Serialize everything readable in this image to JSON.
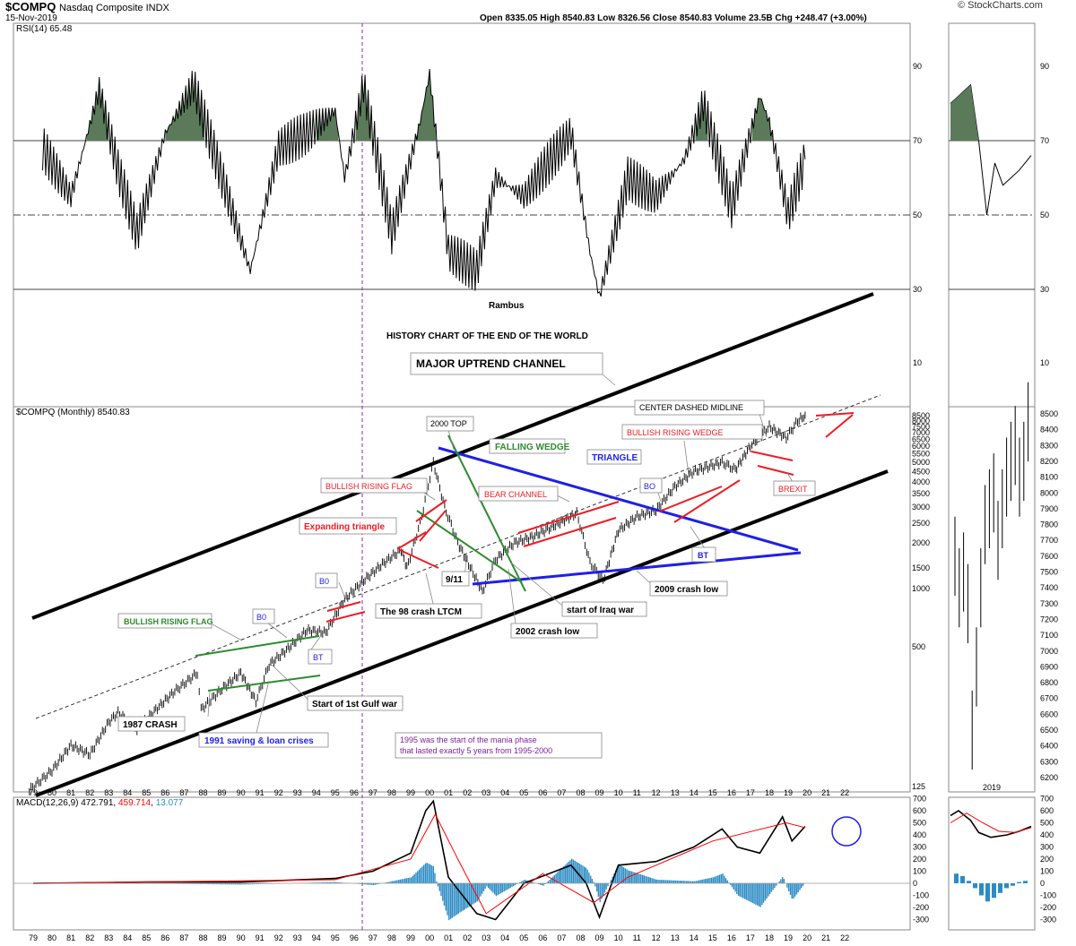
{
  "header": {
    "symbol": "$COMPQ",
    "name": "Nasdaq Composite INDX",
    "date": "15-Nov-2019",
    "brand": "© StockCharts.com",
    "ohlc": "Open 8335.05  High 8540.83  Low 8326.56  Close 8540.83  Volume 23.5B  Chg +248.47 (+3.00%)"
  },
  "rsi": {
    "label": "RSI(14) 65.48",
    "levels": [
      90,
      70,
      50,
      30,
      10
    ]
  },
  "price_panel": {
    "label": "$COMPQ (Monthly) 8540.83",
    "log_ticks": [
      125,
      500,
      1000,
      1500,
      2000,
      2500,
      3000,
      3500,
      4000,
      4500,
      5000,
      5500,
      6000,
      6500,
      7000,
      7500,
      8000,
      8500
    ],
    "inset_ticks": [
      6200,
      6300,
      6400,
      6500,
      6600,
      6700,
      6800,
      6900,
      7000,
      7100,
      7200,
      7300,
      7400,
      7500,
      7600,
      7700,
      7800,
      7900,
      8000,
      8100,
      8200,
      8300,
      8400,
      8500
    ]
  },
  "macd": {
    "label": "MACD(12,26,9)",
    "v1": "472.791",
    "v2": "459.714",
    "v3": "13.077",
    "ticks": [
      700,
      600,
      500,
      400,
      300,
      200,
      100,
      0,
      -100,
      -200,
      -300
    ]
  },
  "x_axis": {
    "years": [
      "79",
      "80",
      "81",
      "82",
      "83",
      "84",
      "85",
      "86",
      "87",
      "88",
      "89",
      "90",
      "91",
      "92",
      "93",
      "94",
      "95",
      "96",
      "97",
      "98",
      "99",
      "00",
      "01",
      "02",
      "03",
      "04",
      "05",
      "06",
      "07",
      "08",
      "09",
      "10",
      "11",
      "12",
      "13",
      "14",
      "15",
      "16",
      "17",
      "18",
      "19",
      "20",
      "21",
      "22"
    ],
    "inset_label": "2019"
  },
  "annotations": {
    "rambus": "Rambus",
    "title": "HISTORY CHART OF THE END OF THE WORLD",
    "major_channel": "MAJOR UPTREND CHANNEL",
    "center_midline": "CENTER DASHED MIDLINE",
    "top_2000": "2000 TOP",
    "falling_wedge": "FALLING WEDGE",
    "triangle": "TRIANGLE",
    "bullish_rising_flag_1": "BULLISH RISING FLAG",
    "bullish_rising_flag_2": "BULLISH RISING FLAG",
    "bear_channel": "BEAR CHANNEL",
    "bullish_rising_wedge": "BULLISH RISING WEDGE",
    "expanding_triangle": "Expanding triangle",
    "brexit": "BREXIT",
    "bo1": "B0",
    "bo2": "B0",
    "bo3": "BO",
    "bt1": "BT",
    "bt2": "BT",
    "crash_1987": "1987 CRASH",
    "gulf_war": "Start of 1st Gulf war",
    "sl_crisis": "1991 saving & loan crises",
    "ltcm": "The 98 crash LTCM",
    "nine_eleven": "9/11",
    "iraq": "start of Iraq war",
    "crash_2002": "2002 crash low",
    "crash_2009": "2009 crash low",
    "mania_1": "1995 was the start of the mania phase",
    "mania_2": "that lasted exactly 5 years from 1995-2000"
  },
  "colors": {
    "rsi_fill_high": "#5a7a5a",
    "rsi_fill_low": "#b0707a",
    "red": "#ee1c24",
    "blue": "#1f1fe6",
    "green": "#2e8b2e",
    "purple": "#7f1f9f",
    "macd_signal": "#ff0000",
    "macd_hist": "#2b8cc4"
  },
  "chart_data": [
    {
      "type": "line",
      "title": "RSI(14)",
      "ylim": [
        0,
        100
      ],
      "reference_lines": [
        70,
        50,
        30
      ],
      "x": [
        1979.5,
        1981,
        1982.5,
        1983.5,
        1984.5,
        1986,
        1987.5,
        1989,
        1990.5,
        1992,
        1993.5,
        1995,
        1995.5,
        1996.5,
        1998,
        1999.5,
        2000,
        2001,
        2002.5,
        2003.5,
        2005,
        2006,
        2007.5,
        2008.5,
        2009,
        2010.5,
        2012,
        2013.5,
        2014.5,
        2016,
        2017.5,
        2018,
        2019,
        2019.9
      ],
      "values": [
        68,
        55,
        84,
        62,
        45,
        72,
        85,
        60,
        35,
        68,
        72,
        78,
        60,
        85,
        45,
        75,
        88,
        40,
        35,
        60,
        55,
        62,
        72,
        40,
        28,
        60,
        55,
        65,
        80,
        52,
        82,
        75,
        50,
        65
      ]
    },
    {
      "type": "line",
      "title": "$COMPQ (Monthly)",
      "yscale": "log",
      "ylim": [
        80,
        9500
      ],
      "x": [
        1978.8,
        1980,
        1981,
        1982,
        1983,
        1983.5,
        1984.5,
        1985.5,
        1986.5,
        1987.7,
        1987.9,
        1989,
        1990,
        1990.8,
        1991.5,
        1992.5,
        1993.5,
        1994.5,
        1995.5,
        1996.5,
        1997.5,
        1998.5,
        1998.8,
        1999.5,
        2000.2,
        2000.8,
        2001.5,
        2002.8,
        2003.5,
        2004.5,
        2005.5,
        2006.5,
        2007.8,
        2008.5,
        2009.2,
        2010,
        2011,
        2012,
        2013,
        2014,
        2015.5,
        2016.2,
        2017,
        2018,
        2018.9,
        2019.5,
        2019.9
      ],
      "values": [
        120,
        150,
        200,
        180,
        260,
        290,
        240,
        300,
        370,
        455,
        300,
        380,
        455,
        330,
        500,
        600,
        740,
        720,
        1050,
        1300,
        1570,
        1850,
        1500,
        2500,
        5000,
        3000,
        2000,
        1150,
        1650,
        2000,
        2150,
        2400,
        2800,
        1600,
        1300,
        2300,
        2700,
        2900,
        3800,
        4500,
        5000,
        4600,
        6000,
        7500,
        6600,
        8000,
        8540
      ]
    },
    {
      "type": "line",
      "title": "MACD(12,26,9)",
      "series": [
        {
          "name": "MACD(12,26,9)",
          "x": [
            1979,
            1985,
            1990,
            1995,
            1997,
            1999,
            1999.8,
            2000.2,
            2001,
            2002.5,
            2003.5,
            2005,
            2007.5,
            2008.3,
            2009,
            2010,
            2012,
            2014,
            2015.5,
            2016.3,
            2017.5,
            2018.7,
            2019.2,
            2019.9
          ],
          "values": [
            0,
            10,
            10,
            40,
            100,
            250,
            600,
            680,
            50,
            -250,
            -300,
            0,
            150,
            0,
            -280,
            150,
            180,
            300,
            450,
            300,
            250,
            550,
            350,
            470
          ]
        },
        {
          "name": "Signal",
          "x": [
            1979,
            1995,
            1999,
            2000.3,
            2001.5,
            2003,
            2006,
            2008.7,
            2010.5,
            2015,
            2018.9,
            2019.9
          ],
          "values": [
            0,
            30,
            200,
            570,
            200,
            -250,
            80,
            -160,
            50,
            350,
            500,
            460
          ]
        }
      ]
    }
  ]
}
